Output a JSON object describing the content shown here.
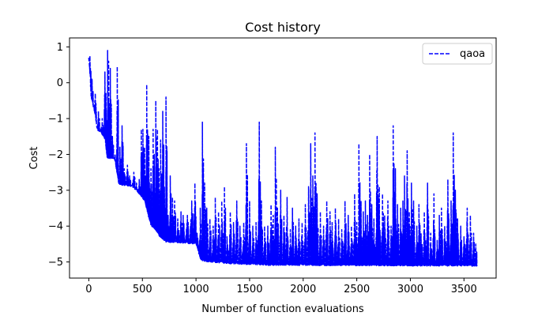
{
  "chart_data": {
    "type": "line",
    "title": "Cost history",
    "xlabel": "Number of function evaluations",
    "ylabel": "Cost",
    "xlim": [
      -180,
      3800
    ],
    "ylim": [
      -5.45,
      1.25
    ],
    "xticks": [
      0,
      500,
      1000,
      1500,
      2000,
      2500,
      3000,
      3500
    ],
    "yticks": [
      1,
      0,
      -1,
      -2,
      -3,
      -4,
      -5
    ],
    "legend_position": "top-right",
    "grid": false,
    "series": [
      {
        "name": "qaoa",
        "color": "#0000ff",
        "line_style": "dashed",
        "x_range": [
          0,
          3620
        ],
        "baseline_levels": [
          [
            0,
            0.7
          ],
          [
            20,
            -0.4
          ],
          [
            50,
            -0.8
          ],
          [
            80,
            -1.35
          ],
          [
            110,
            -1.4
          ],
          [
            150,
            -1.6
          ],
          [
            170,
            -2.1
          ],
          [
            240,
            -2.15
          ],
          [
            280,
            -2.85
          ],
          [
            400,
            -2.9
          ],
          [
            440,
            -3.0
          ],
          [
            520,
            -3.3
          ],
          [
            560,
            -3.8
          ],
          [
            580,
            -4.0
          ],
          [
            620,
            -4.1
          ],
          [
            660,
            -4.3
          ],
          [
            720,
            -4.45
          ],
          [
            1000,
            -4.5
          ],
          [
            1040,
            -4.95
          ],
          [
            1100,
            -5.0
          ],
          [
            1300,
            -5.05
          ],
          [
            1700,
            -5.1
          ],
          [
            2000,
            -5.1
          ],
          [
            3620,
            -5.12
          ]
        ],
        "spikes": [
          [
            10,
            0.75
          ],
          [
            30,
            0.1
          ],
          [
            60,
            -0.3
          ],
          [
            90,
            -0.8
          ],
          [
            125,
            -1.0
          ],
          [
            150,
            0.3
          ],
          [
            160,
            -0.3
          ],
          [
            175,
            0.9
          ],
          [
            185,
            0.6
          ],
          [
            200,
            0.4
          ],
          [
            220,
            -1.5
          ],
          [
            245,
            -2.0
          ],
          [
            265,
            0.45
          ],
          [
            290,
            -1.8
          ],
          [
            310,
            -1.2
          ],
          [
            330,
            -2.4
          ],
          [
            360,
            -2.3
          ],
          [
            380,
            -2.6
          ],
          [
            420,
            -2.5
          ],
          [
            445,
            -2.8
          ],
          [
            470,
            -2.7
          ],
          [
            490,
            -1.3
          ],
          [
            505,
            -1.3
          ],
          [
            520,
            -1.8
          ],
          [
            540,
            -0.05
          ],
          [
            560,
            -1.5
          ],
          [
            580,
            -2.4
          ],
          [
            600,
            -1.3
          ],
          [
            610,
            -2.0
          ],
          [
            625,
            -0.5
          ],
          [
            640,
            -1.3
          ],
          [
            655,
            -2.4
          ],
          [
            670,
            -1.6
          ],
          [
            690,
            -0.8
          ],
          [
            705,
            -2.9
          ],
          [
            720,
            -0.4
          ],
          [
            740,
            -3.7
          ],
          [
            760,
            -2.6
          ],
          [
            780,
            -3.2
          ],
          [
            800,
            -3.3
          ],
          [
            830,
            -3.8
          ],
          [
            860,
            -3.6
          ],
          [
            880,
            -3.7
          ],
          [
            920,
            -3.7
          ],
          [
            960,
            -3.3
          ],
          [
            990,
            -2.8
          ],
          [
            1010,
            -4.2
          ],
          [
            1040,
            -3.5
          ],
          [
            1060,
            -1.1
          ],
          [
            1080,
            -2.8
          ],
          [
            1100,
            -3.5
          ],
          [
            1130,
            -3.8
          ],
          [
            1160,
            -4.0
          ],
          [
            1180,
            -3.2
          ],
          [
            1210,
            -3.6
          ],
          [
            1240,
            -3.3
          ],
          [
            1265,
            -2.9
          ],
          [
            1290,
            -4.3
          ],
          [
            1320,
            -3.6
          ],
          [
            1350,
            -3.9
          ],
          [
            1380,
            -3.3
          ],
          [
            1410,
            -4.0
          ],
          [
            1445,
            -3.9
          ],
          [
            1470,
            -1.7
          ],
          [
            1500,
            -3.3
          ],
          [
            1530,
            -4.0
          ],
          [
            1560,
            -3.9
          ],
          [
            1590,
            -1.1
          ],
          [
            1610,
            -3.3
          ],
          [
            1640,
            -4.0
          ],
          [
            1670,
            -4.0
          ],
          [
            1700,
            -3.4
          ],
          [
            1720,
            -3.7
          ],
          [
            1740,
            -1.8
          ],
          [
            1760,
            -3.5
          ],
          [
            1790,
            -3.0
          ],
          [
            1820,
            -3.7
          ],
          [
            1850,
            -3.2
          ],
          [
            1880,
            -4.1
          ],
          [
            1900,
            -3.5
          ],
          [
            1930,
            -4.0
          ],
          [
            1960,
            -3.8
          ],
          [
            1990,
            -3.9
          ],
          [
            2020,
            -3.4
          ],
          [
            2050,
            -2.9
          ],
          [
            2070,
            -1.7
          ],
          [
            2090,
            -2.6
          ],
          [
            2110,
            -1.4
          ],
          [
            2130,
            -3.1
          ],
          [
            2160,
            -3.6
          ],
          [
            2190,
            -4.0
          ],
          [
            2220,
            -3.3
          ],
          [
            2250,
            -3.6
          ],
          [
            2270,
            -3.9
          ],
          [
            2300,
            -3.5
          ],
          [
            2330,
            -3.8
          ],
          [
            2360,
            -4.1
          ],
          [
            2390,
            -3.3
          ],
          [
            2420,
            -3.7
          ],
          [
            2450,
            -4.0
          ],
          [
            2480,
            -3.1
          ],
          [
            2500,
            -3.9
          ],
          [
            2520,
            -1.7
          ],
          [
            2540,
            -3.3
          ],
          [
            2560,
            -3.6
          ],
          [
            2580,
            -3.3
          ],
          [
            2600,
            -3.7
          ],
          [
            2620,
            -2.0
          ],
          [
            2640,
            -3.4
          ],
          [
            2660,
            -3.8
          ],
          [
            2690,
            -1.5
          ],
          [
            2710,
            -2.9
          ],
          [
            2740,
            -3.1
          ],
          [
            2760,
            -3.7
          ],
          [
            2790,
            -3.3
          ],
          [
            2820,
            -4.0
          ],
          [
            2840,
            -1.2
          ],
          [
            2860,
            -2.4
          ],
          [
            2880,
            -3.4
          ],
          [
            2910,
            -3.5
          ],
          [
            2930,
            -3.3
          ],
          [
            2945,
            -2.6
          ],
          [
            2970,
            -1.9
          ],
          [
            2990,
            -3.6
          ],
          [
            3010,
            -2.8
          ],
          [
            3030,
            -3.3
          ],
          [
            3060,
            -4.0
          ],
          [
            3080,
            -3.4
          ],
          [
            3100,
            -4.2
          ],
          [
            3130,
            -3.6
          ],
          [
            3160,
            -2.8
          ],
          [
            3190,
            -4.2
          ],
          [
            3220,
            -3.1
          ],
          [
            3250,
            -4.4
          ],
          [
            3270,
            -3.7
          ],
          [
            3290,
            -3.5
          ],
          [
            3320,
            -4.0
          ],
          [
            3350,
            -2.7
          ],
          [
            3380,
            -3.3
          ],
          [
            3400,
            -1.4
          ],
          [
            3420,
            -3.0
          ],
          [
            3440,
            -3.8
          ],
          [
            3470,
            -4.0
          ],
          [
            3500,
            -4.3
          ],
          [
            3530,
            -3.5
          ],
          [
            3560,
            -3.7
          ],
          [
            3590,
            -4.2
          ],
          [
            3610,
            -4.5
          ]
        ]
      }
    ]
  }
}
